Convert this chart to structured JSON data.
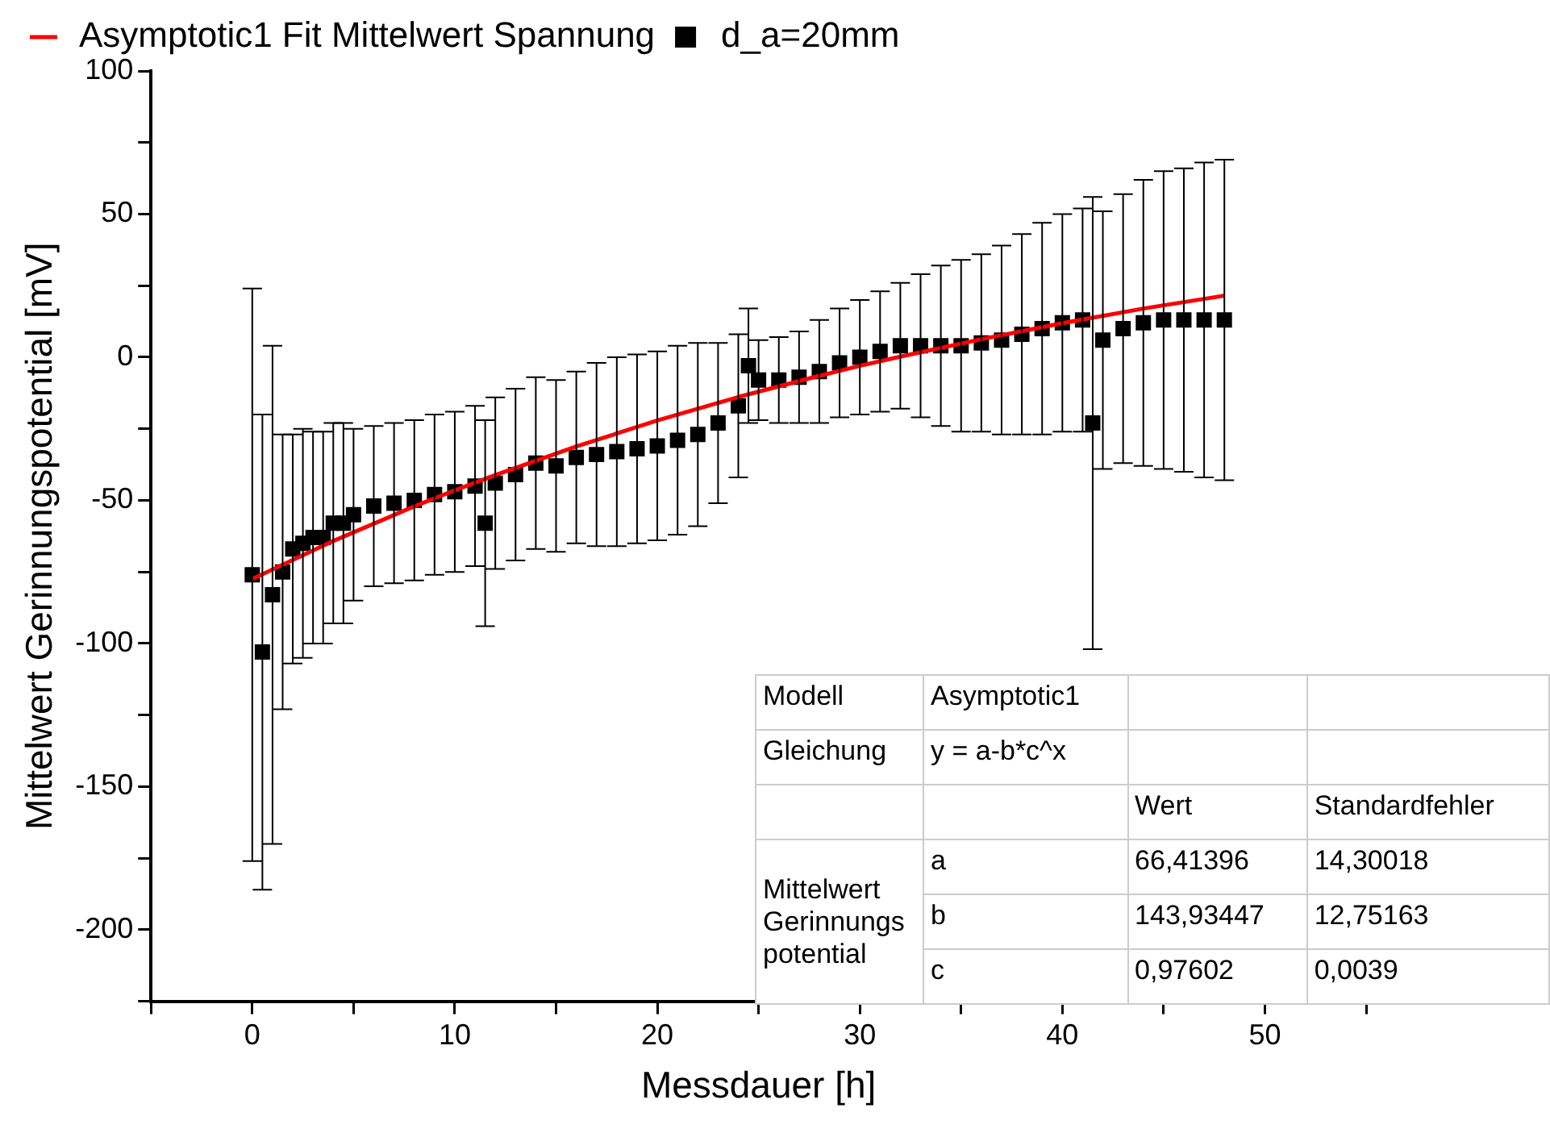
{
  "chart_data": {
    "type": "scatter",
    "xlabel": "Messdauer [h]",
    "ylabel": "Mittelwert Gerinnungspotential [mV]",
    "xlim": [
      -5,
      55
    ],
    "ylim": [
      -225,
      100
    ],
    "xticks": [
      {
        "value": -5,
        "label": null
      },
      0,
      {
        "value": 5,
        "label": null
      },
      10,
      {
        "value": 15,
        "label": null
      },
      20,
      {
        "value": 25,
        "label": null
      },
      30,
      {
        "value": 35,
        "label": null
      },
      40,
      {
        "value": 45,
        "label": null
      },
      50,
      {
        "value": 55,
        "label": null
      }
    ],
    "yticks": [
      {
        "value": -225,
        "label": null
      },
      -200,
      {
        "value": -175,
        "label": null
      },
      -150,
      {
        "value": -125,
        "label": null
      },
      -100,
      {
        "value": -75,
        "label": null
      },
      -50,
      {
        "value": -25,
        "label": null
      },
      0,
      {
        "value": 25,
        "label": null
      },
      50,
      {
        "value": 75,
        "label": null
      },
      100
    ],
    "grid": false,
    "legend": "top left",
    "marker": "square",
    "series": [
      {
        "name": "d_a=20mm",
        "color": "#000000",
        "x": [
          0,
          0.5,
          1,
          1.5,
          2,
          2.5,
          3,
          3.5,
          4,
          4.5,
          5,
          6,
          7,
          8,
          9,
          10,
          11,
          11.5,
          12,
          13,
          14,
          15,
          16,
          17,
          18,
          19,
          20,
          21,
          22,
          23,
          24,
          24.5,
          25,
          26,
          27,
          28,
          29,
          30,
          31,
          32,
          33,
          34,
          35,
          36,
          37,
          38,
          39,
          40,
          41,
          41.5,
          42,
          43,
          44,
          45,
          46,
          47,
          48
        ],
        "values": [
          -76,
          -103,
          -83,
          -75,
          -67,
          -65,
          -63,
          -63,
          -58,
          -58,
          -55,
          -52,
          -51,
          -50,
          -48,
          -47,
          -45,
          -58,
          -44,
          -41,
          -37,
          -38,
          -35,
          -34,
          -33,
          -32,
          -31,
          -29,
          -27,
          -23,
          -17,
          -3,
          -8,
          -8,
          -7,
          -5,
          -2,
          0,
          2,
          4,
          4,
          4,
          4,
          5,
          6,
          8,
          10,
          12,
          13,
          -23,
          6,
          10,
          12,
          13,
          13,
          13,
          13
        ],
        "errors": [
          100,
          83,
          87,
          48,
          40,
          40,
          37,
          37,
          35,
          35,
          30,
          28,
          28,
          28,
          28,
          28,
          28,
          36,
          30,
          30,
          30,
          30,
          30,
          32,
          33,
          33,
          33,
          33,
          32,
          28,
          25,
          20,
          14,
          15,
          16,
          18,
          19,
          20,
          21,
          22,
          25,
          28,
          30,
          31,
          33,
          35,
          37,
          38,
          39,
          79,
          45,
          47,
          50,
          52,
          53,
          55,
          56
        ]
      },
      {
        "name": "Asymptotic1 Fit Mittelwert Spannung",
        "color": "#ff0000",
        "type": "line",
        "marker": "none",
        "line_style": "solid",
        "x": [
          0,
          4,
          8,
          10,
          12,
          16,
          20,
          24,
          28,
          30,
          32,
          36,
          40,
          44,
          48
        ],
        "values": [
          -77.5,
          -64.2,
          -52.1,
          -46.5,
          -41.2,
          -31.2,
          -22.1,
          -13.9,
          -6.5,
          -3.0,
          0.2,
          6.3,
          11.9,
          17.0,
          21.5
        ]
      }
    ],
    "annotations": [
      "Modell",
      "Asymptotic1",
      "Gleichung",
      "y = a-b*c^x",
      "Wert",
      "Standardfehler",
      "Mittelwert Gerinnungs potential",
      "a",
      "66,41396",
      "14,30018",
      "b",
      "143,93447",
      "12,75163",
      "c",
      "0,97602",
      "0,0039"
    ]
  }
}
